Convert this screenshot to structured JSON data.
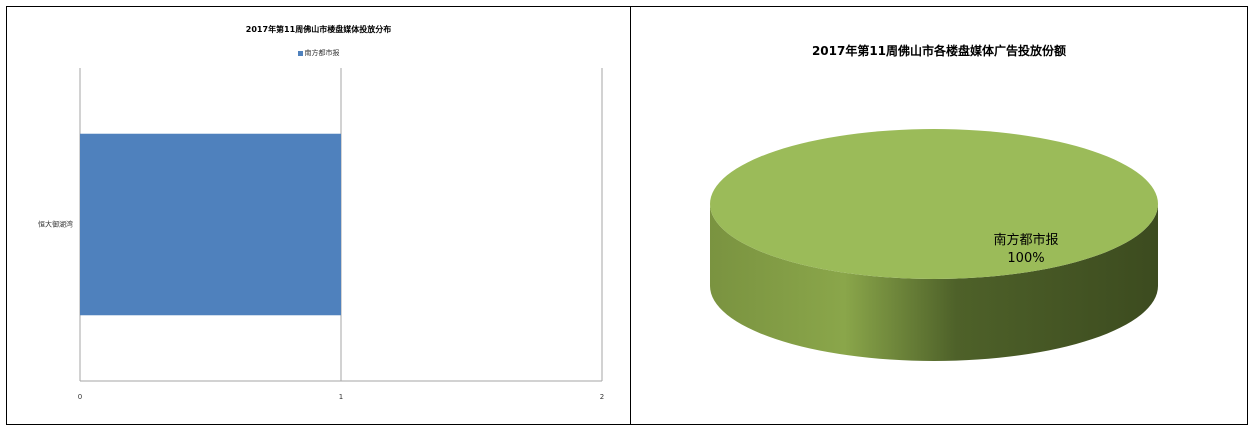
{
  "chart_data": [
    {
      "type": "bar",
      "orientation": "horizontal",
      "title": "2017年第11周佛山市楼盘媒体投放分布",
      "categories": [
        "恒大御湖湾"
      ],
      "series": [
        {
          "name": "南方都市报",
          "values": [
            1
          ],
          "color": "#4f81bd"
        }
      ],
      "xlim": [
        0,
        2
      ],
      "xticks": [
        "0",
        "1",
        "2"
      ],
      "grid": true,
      "legend": "top"
    },
    {
      "type": "pie",
      "title": "2017年第11周佛山市各楼盘媒体广告投放份额",
      "slices": [
        {
          "label": "南方都市报",
          "value": 100,
          "percent_label": "100%",
          "color": "#9bbb59"
        }
      ],
      "style": "3d"
    }
  ]
}
